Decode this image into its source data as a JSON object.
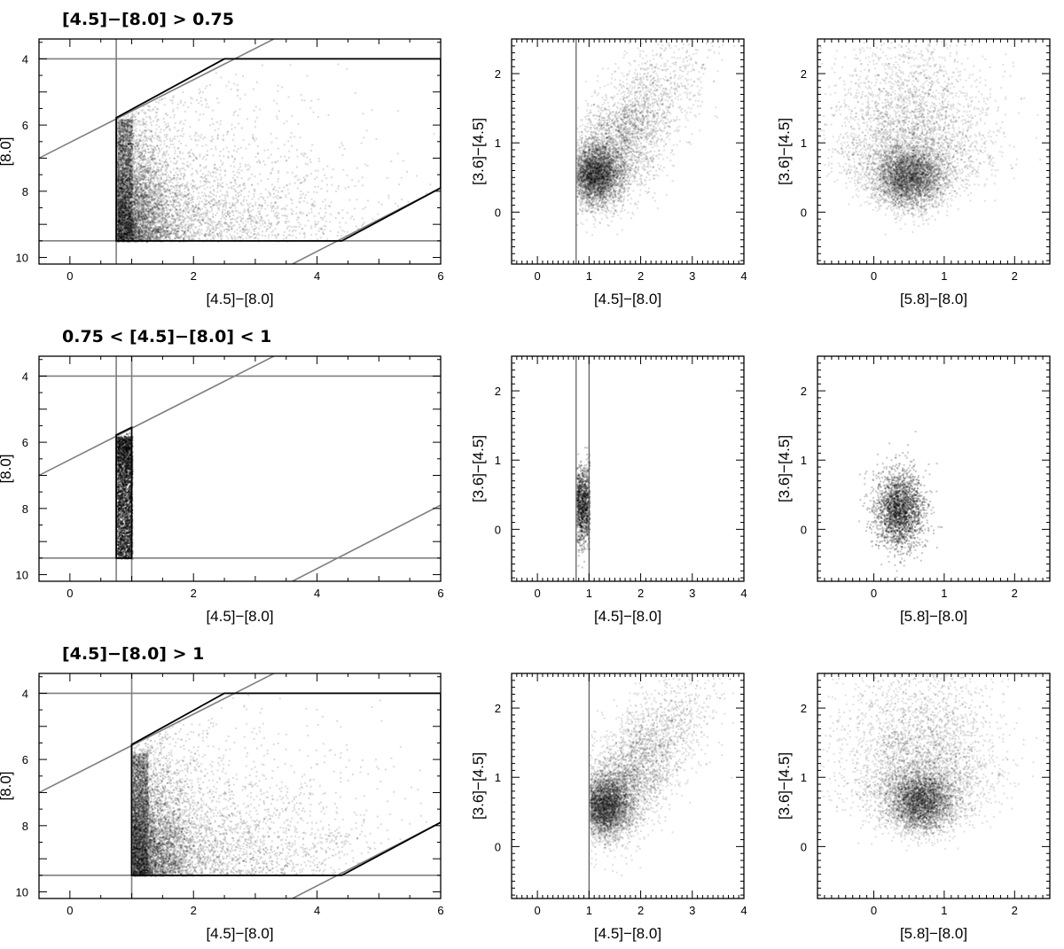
{
  "chart_data": [
    {
      "type": "heatmap",
      "row": 0,
      "col": 0,
      "title": "[4.5]−[8.0] > 0.75",
      "xlabel": "[4.5]−[8.0]",
      "ylabel": "[8.0]",
      "xlim": [
        -0.5,
        6
      ],
      "ylim": [
        10.2,
        3.4
      ],
      "y_inverted": true,
      "xticks": [
        0,
        2,
        4,
        6
      ],
      "yticks": [
        4,
        6,
        8,
        10
      ],
      "grey_lines": [
        {
          "kind": "v",
          "x": 0.75
        },
        {
          "kind": "h",
          "y": 4.0
        },
        {
          "kind": "h",
          "y": 9.5
        },
        {
          "kind": "seg",
          "x1": -0.5,
          "y1": 7.0,
          "x2": 3.3,
          "y2": 3.4
        },
        {
          "kind": "seg",
          "x1": 3.6,
          "y1": 10.2,
          "x2": 6.0,
          "y2": 7.9
        }
      ],
      "selection_region": [
        [
          0.75,
          5.78
        ],
        [
          2.5,
          4.0
        ],
        [
          6.0,
          4.0
        ],
        [
          6.0,
          7.9
        ],
        [
          4.4,
          9.5
        ],
        [
          0.75,
          9.5
        ]
      ],
      "density": "points concentrated near the [4.5]−[8.0]=0.75 edge and toward faint [8.0] 8.5–9.5"
    },
    {
      "type": "heatmap",
      "row": 0,
      "col": 1,
      "xlabel": "[4.5]−[8.0]",
      "ylabel": "[3.6]−[4.5]",
      "xlim": [
        -0.5,
        4
      ],
      "ylim": [
        -0.75,
        2.5
      ],
      "xticks": [
        0,
        1,
        2,
        3,
        4
      ],
      "yticks": [
        0,
        1,
        2
      ],
      "lines": [
        {
          "kind": "v",
          "x": 0.75
        }
      ],
      "density_peak": {
        "x": 1.1,
        "y": 0.55
      }
    },
    {
      "type": "heatmap",
      "row": 0,
      "col": 2,
      "xlabel": "[5.8]−[8.0]",
      "ylabel": "[3.6]−[4.5]",
      "xlim": [
        -0.8,
        2.5
      ],
      "ylim": [
        -0.75,
        2.5
      ],
      "xticks": [
        0,
        1,
        2
      ],
      "yticks": [
        0,
        1,
        2
      ],
      "density_peak": {
        "x": 0.5,
        "y": 0.5
      }
    },
    {
      "type": "heatmap",
      "row": 1,
      "col": 0,
      "title": "0.75 < [4.5]−[8.0] < 1",
      "xlabel": "[4.5]−[8.0]",
      "ylabel": "[8.0]",
      "xlim": [
        -0.5,
        6
      ],
      "ylim": [
        10.2,
        3.4
      ],
      "y_inverted": true,
      "xticks": [
        0,
        2,
        4,
        6
      ],
      "yticks": [
        4,
        6,
        8,
        10
      ],
      "grey_lines": [
        {
          "kind": "v",
          "x": 0.75
        },
        {
          "kind": "v",
          "x": 1.0
        },
        {
          "kind": "h",
          "y": 4.0
        },
        {
          "kind": "h",
          "y": 9.5
        },
        {
          "kind": "seg",
          "x1": -0.5,
          "y1": 7.0,
          "x2": 3.3,
          "y2": 3.4
        },
        {
          "kind": "seg",
          "x1": 3.6,
          "y1": 10.2,
          "x2": 6.0,
          "y2": 7.9
        }
      ],
      "selection_region": [
        [
          0.75,
          5.78
        ],
        [
          1.0,
          5.55
        ],
        [
          1.0,
          9.5
        ],
        [
          0.75,
          9.5
        ]
      ],
      "density": "narrow strip, densest near [8.0] 6–8"
    },
    {
      "type": "heatmap",
      "row": 1,
      "col": 1,
      "xlabel": "[4.5]−[8.0]",
      "ylabel": "[3.6]−[4.5]",
      "xlim": [
        -0.5,
        4
      ],
      "ylim": [
        -0.75,
        2.5
      ],
      "xticks": [
        0,
        1,
        2,
        3,
        4
      ],
      "yticks": [
        0,
        1,
        2
      ],
      "lines": [
        {
          "kind": "v",
          "x": 0.75
        },
        {
          "kind": "v",
          "x": 1.0
        }
      ],
      "density_peak": {
        "x": 0.85,
        "y": 0.35
      }
    },
    {
      "type": "heatmap",
      "row": 1,
      "col": 2,
      "xlabel": "[5.8]−[8.0]",
      "ylabel": "[3.6]−[4.5]",
      "xlim": [
        -0.8,
        2.5
      ],
      "ylim": [
        -0.75,
        2.5
      ],
      "xticks": [
        0,
        1,
        2
      ],
      "yticks": [
        0,
        1,
        2
      ],
      "density_peak": {
        "x": 0.35,
        "y": 0.3
      }
    },
    {
      "type": "heatmap",
      "row": 2,
      "col": 0,
      "title": "[4.5]−[8.0] > 1",
      "xlabel": "[4.5]−[8.0]",
      "ylabel": "[8.0]",
      "xlim": [
        -0.5,
        6
      ],
      "ylim": [
        10.2,
        3.4
      ],
      "y_inverted": true,
      "xticks": [
        0,
        2,
        4,
        6
      ],
      "yticks": [
        4,
        6,
        8,
        10
      ],
      "grey_lines": [
        {
          "kind": "v",
          "x": 1.0
        },
        {
          "kind": "h",
          "y": 4.0
        },
        {
          "kind": "h",
          "y": 9.5
        },
        {
          "kind": "seg",
          "x1": -0.5,
          "y1": 7.0,
          "x2": 3.3,
          "y2": 3.4
        },
        {
          "kind": "seg",
          "x1": 3.6,
          "y1": 10.2,
          "x2": 6.0,
          "y2": 7.9
        }
      ],
      "selection_region": [
        [
          1.0,
          5.55
        ],
        [
          2.5,
          4.0
        ],
        [
          6.0,
          4.0
        ],
        [
          6.0,
          7.9
        ],
        [
          4.4,
          9.5
        ],
        [
          1.0,
          9.5
        ]
      ],
      "density": "points concentrated toward faint [8.0] near [4.5]−[8.0] ≈ 1–1.5"
    },
    {
      "type": "heatmap",
      "row": 2,
      "col": 1,
      "xlabel": "[4.5]−[8.0]",
      "ylabel": "[3.6]−[4.5]",
      "xlim": [
        -0.5,
        4
      ],
      "ylim": [
        -0.75,
        2.5
      ],
      "xticks": [
        0,
        1,
        2,
        3,
        4
      ],
      "yticks": [
        0,
        1,
        2
      ],
      "lines": [
        {
          "kind": "v",
          "x": 1.0
        }
      ],
      "density_peak": {
        "x": 1.3,
        "y": 0.6
      }
    },
    {
      "type": "heatmap",
      "row": 2,
      "col": 2,
      "xlabel": "[5.8]−[8.0]",
      "ylabel": "[3.6]−[4.5]",
      "xlim": [
        -0.8,
        2.5
      ],
      "ylim": [
        -0.75,
        2.5
      ],
      "xticks": [
        0,
        1,
        2
      ],
      "yticks": [
        0,
        1,
        2
      ],
      "density_peak": {
        "x": 0.65,
        "y": 0.65
      }
    }
  ]
}
